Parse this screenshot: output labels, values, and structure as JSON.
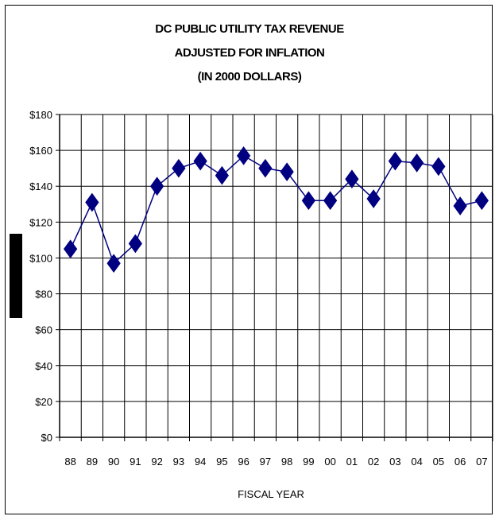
{
  "chart_data": {
    "type": "line",
    "title": [
      "DC PUBLIC UTILITY TAX REVENUE",
      "ADJUSTED FOR INFLATION",
      "(IN 2000 DOLLARS)"
    ],
    "xlabel": "FISCAL YEAR",
    "ylabel": "",
    "categories": [
      "88",
      "89",
      "90",
      "91",
      "92",
      "93",
      "94",
      "95",
      "96",
      "97",
      "98",
      "99",
      "00",
      "01",
      "02",
      "03",
      "04",
      "05",
      "06",
      "07"
    ],
    "series": [
      {
        "values": [
          105,
          131,
          97,
          108,
          140,
          150,
          154,
          146,
          157,
          150,
          148,
          132,
          132,
          144,
          133,
          154,
          153,
          151,
          129,
          132
        ]
      }
    ],
    "ylim": [
      0,
      180
    ],
    "yticks": [
      0,
      20,
      40,
      60,
      80,
      100,
      120,
      140,
      160,
      180
    ],
    "ytick_labels": [
      "$0",
      "$20",
      "$40",
      "$60",
      "$80",
      "$100",
      "$120",
      "$140",
      "$160",
      "$180"
    ],
    "grid": true,
    "line_color": "#000080",
    "marker": "diamond"
  }
}
